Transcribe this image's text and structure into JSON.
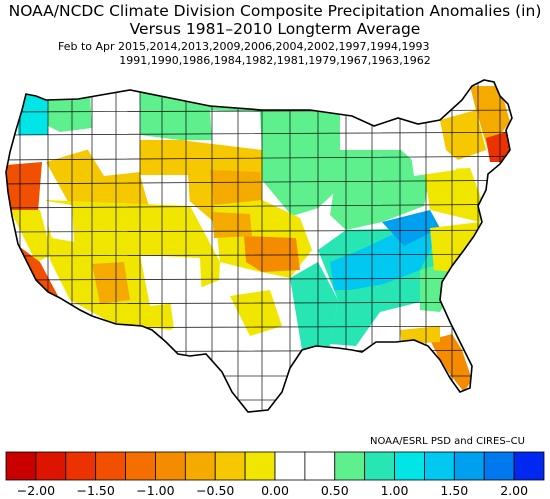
{
  "header": {
    "title_line1": "NOAA/NCDC Climate Division Composite Precipitation Anomalies (in)",
    "title_line2": "Versus 1981–2010 Longterm Average",
    "period_line1": "Feb to Apr  2015,2014,2013,2009,2006,2004,2002,1997,1994,1993",
    "period_line2": "1991,1990,1986,1984,1982,1981,1979,1967,1963,1962"
  },
  "credit": "NOAA/ESRL PSD and CIRES–CU",
  "colors": {
    "dry_strong": "#c80000",
    "dry_mid": "#f05a00",
    "dry_orange": "#f5a000",
    "dry_light": "#f0dc00",
    "neutral": "#ffffff",
    "wet_light": "#5ef08c",
    "wet_mid": "#00e6e6",
    "wet_blue": "#0096f0",
    "wet_strong": "#0028f0",
    "boundary": "#000000"
  },
  "legend": {
    "tick_labels": [
      "−2.00",
      "−1.50",
      "−1.00",
      "−0.50",
      "0.00",
      "0.50",
      "1.00",
      "1.50",
      "2.00"
    ],
    "bins": [
      {
        "value": -2.125,
        "color": "#c80000"
      },
      {
        "value": -1.875,
        "color": "#dc1400"
      },
      {
        "value": -1.625,
        "color": "#eb3200"
      },
      {
        "value": -1.375,
        "color": "#f05000"
      },
      {
        "value": -1.125,
        "color": "#f56e00"
      },
      {
        "value": -0.875,
        "color": "#f58c00"
      },
      {
        "value": -0.625,
        "color": "#f5aa00"
      },
      {
        "value": -0.375,
        "color": "#f5c800"
      },
      {
        "value": -0.125,
        "color": "#f0e600"
      },
      {
        "value": 0.125,
        "color": "#ffffff"
      },
      {
        "value": 0.375,
        "color": "#ffffff"
      },
      {
        "value": 0.625,
        "color": "#5ef08c"
      },
      {
        "value": 0.875,
        "color": "#28e6b4"
      },
      {
        "value": 1.125,
        "color": "#00e6e6"
      },
      {
        "value": 1.375,
        "color": "#00c8f0"
      },
      {
        "value": 1.625,
        "color": "#00a0f0"
      },
      {
        "value": 1.875,
        "color": "#0078f0"
      },
      {
        "value": 2.125,
        "color": "#0028f0"
      }
    ]
  },
  "map_regions": [
    {
      "name": "washington-coast",
      "color": "#00e6e6"
    },
    {
      "name": "pacific-northwest-interior",
      "color": "#5ef08c"
    },
    {
      "name": "northern-plains",
      "color": "#5ef08c"
    },
    {
      "name": "upper-midwest",
      "color": "#5ef08c"
    },
    {
      "name": "ohio-valley",
      "color": "#5ef08c"
    },
    {
      "name": "tennessee-valley",
      "color": "#00c8f0"
    },
    {
      "name": "deep-south",
      "color": "#28e6b4"
    },
    {
      "name": "central-plains",
      "color": "#f5c800"
    },
    {
      "name": "oklahoma",
      "color": "#f58c00"
    },
    {
      "name": "southwest",
      "color": "#f0e600"
    },
    {
      "name": "great-basin",
      "color": "#f5c800"
    },
    {
      "name": "california-coast",
      "color": "#f05000"
    },
    {
      "name": "florida",
      "color": "#f58c00"
    },
    {
      "name": "new-england",
      "color": "#f5aa00"
    },
    {
      "name": "southern-new-england",
      "color": "#eb3200"
    },
    {
      "name": "mid-atlantic",
      "color": "#f0e600"
    },
    {
      "name": "texas-west",
      "color": "#ffffff"
    }
  ]
}
